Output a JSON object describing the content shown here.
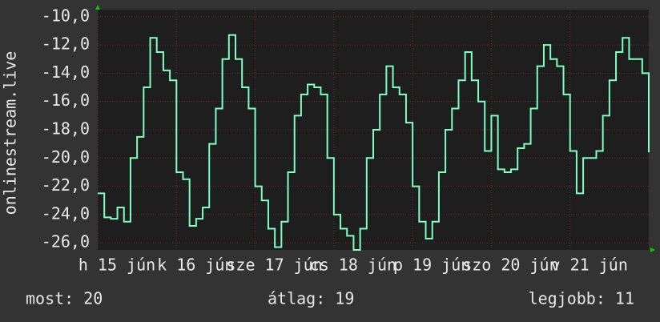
{
  "chart_data": {
    "type": "line",
    "y_label": "onlinestream.live",
    "x": [
      0,
      2,
      4,
      6,
      8,
      10,
      12,
      14,
      16,
      18,
      20,
      22,
      24,
      26,
      28,
      30,
      32,
      34,
      36,
      38,
      40,
      42,
      44,
      46,
      48,
      50,
      52,
      54,
      56,
      58,
      60,
      62,
      64,
      66,
      68,
      70,
      72,
      74,
      76,
      78,
      80,
      82,
      84,
      86,
      88,
      90,
      92,
      94,
      96,
      98,
      100,
      102,
      104,
      106,
      108,
      110,
      112,
      114,
      116,
      118,
      120,
      122,
      124,
      126,
      128,
      130,
      132,
      134,
      136,
      138,
      140,
      142,
      144,
      146,
      148,
      150,
      152,
      154,
      156,
      158,
      160,
      162,
      164,
      166,
      168
    ],
    "series": [
      {
        "color": "#80ffc0",
        "values": [
          -22.5,
          -24.2,
          -24.3,
          -23.5,
          -24.5,
          -20,
          -18.5,
          -15,
          -11.5,
          -12.5,
          -13.8,
          -14.5,
          -21,
          -21.5,
          -24.8,
          -24.3,
          -23.5,
          -19,
          -16.5,
          -13,
          -11.3,
          -13,
          -15,
          -16.5,
          -22,
          -23,
          -25,
          -26.3,
          -24.5,
          -21,
          -17,
          -15.5,
          -14.8,
          -15,
          -15.5,
          -20,
          -24,
          -25,
          -25.5,
          -26.5,
          -25,
          -20,
          -18,
          -15.5,
          -13.5,
          -15,
          -15.5,
          -17.5,
          -22,
          -24.5,
          -25.7,
          -24.5,
          -21,
          -18,
          -16.5,
          -14.5,
          -12.5,
          -14.5,
          -16,
          -19.5,
          -17,
          -20.8,
          -21,
          -20.8,
          -19.3,
          -19,
          -16.5,
          -13.5,
          -12,
          -13,
          -13.5,
          -15.5,
          -19.5,
          -22.5,
          -20,
          -20,
          -19.5,
          -17,
          -14.5,
          -12.5,
          -11.5,
          -13,
          -13,
          -14,
          -19.6
        ]
      }
    ],
    "xlim": [
      0,
      168
    ],
    "xticks": [
      {
        "value": 0,
        "label": "h 15 jún"
      },
      {
        "value": 24,
        "label": "k 16 jún"
      },
      {
        "value": 48,
        "label": "sze 17 jún"
      },
      {
        "value": 72,
        "label": "cs 18 jún"
      },
      {
        "value": 96,
        "label": "p 19 jún"
      },
      {
        "value": 120,
        "label": "szo 20 jún"
      },
      {
        "value": 144,
        "label": "v 21 jún"
      }
    ],
    "ylim": [
      -26.5,
      -9.5
    ],
    "yticks": [
      {
        "value": -10,
        "label": "-10,0"
      },
      {
        "value": -12,
        "label": "-12,0"
      },
      {
        "value": -14,
        "label": "-14,0"
      },
      {
        "value": -16,
        "label": "-16,0"
      },
      {
        "value": -18,
        "label": "-18,0"
      },
      {
        "value": -20,
        "label": "-20,0"
      },
      {
        "value": -22,
        "label": "-22,0"
      },
      {
        "value": -24,
        "label": "-24,0"
      },
      {
        "value": -26,
        "label": "-26,0"
      }
    ],
    "grid": true,
    "footer": [
      "most: 20",
      "átlag: 19",
      "legjobb: 11"
    ]
  }
}
